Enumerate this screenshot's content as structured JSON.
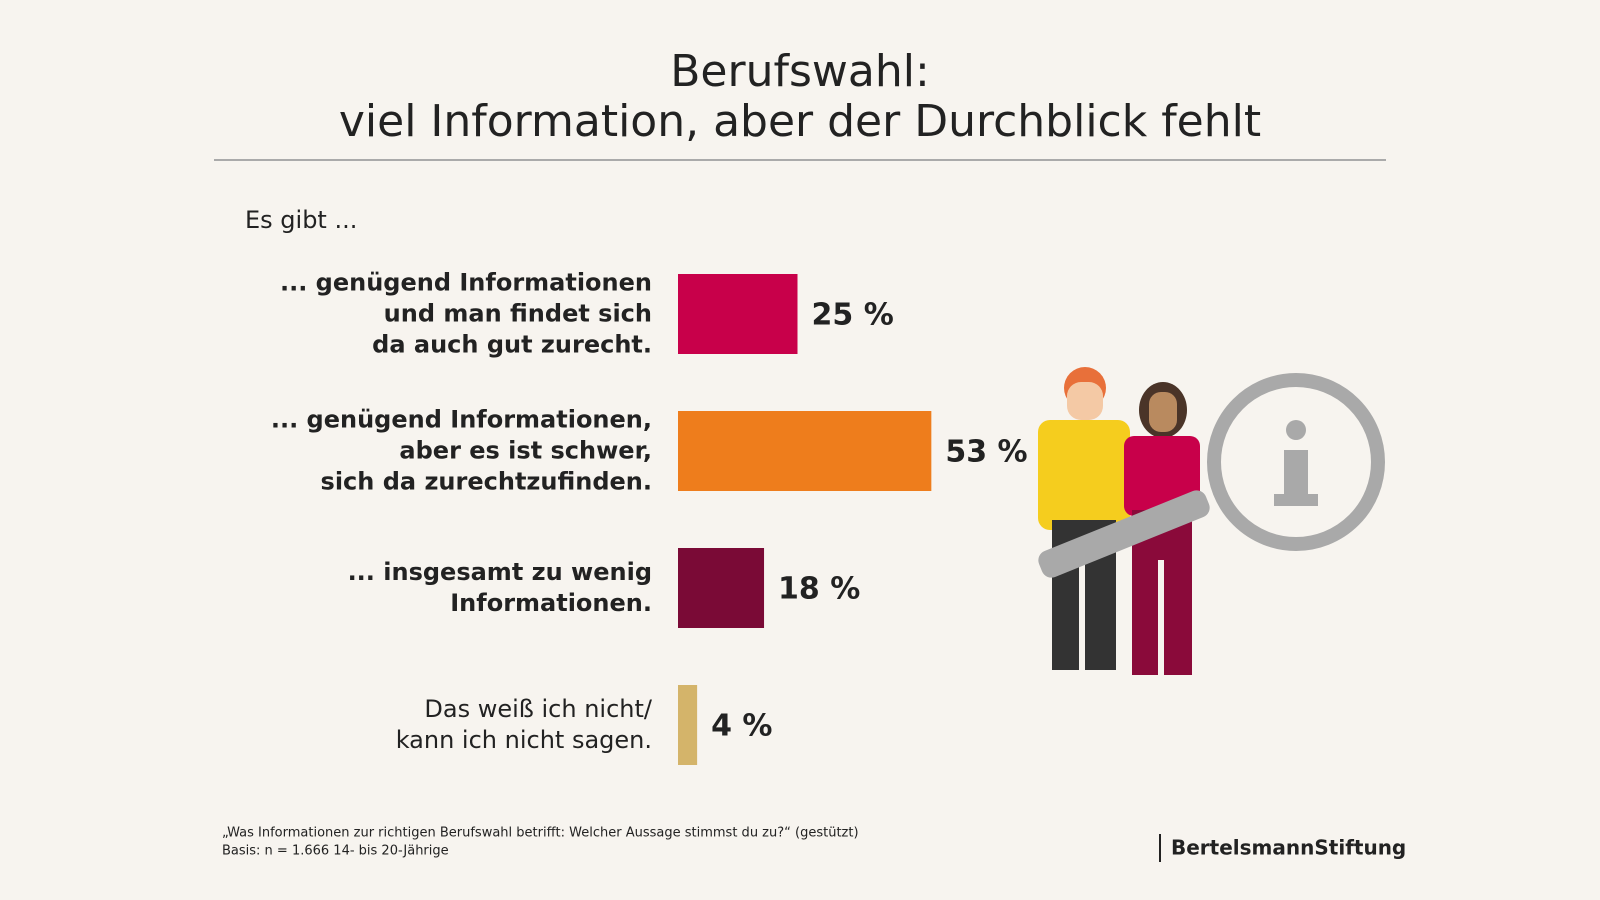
{
  "chart_data": {
    "type": "bar",
    "title": "Berufswahl:",
    "subtitle": "viel Information, aber der Durchblick fehlt",
    "annotation": "Es gibt ...",
    "categories": [
      "... genügend Informationen\nund man findet sich\nda auch gut zurecht.",
      "... genügend Informationen,\naber es ist schwer,\nsich da zurechtzufinden.",
      "... insgesamt zu wenig\nInformationen.",
      "Das weiß ich nicht/\nkann ich nicht sagen."
    ],
    "values": [
      25,
      53,
      18,
      4
    ],
    "value_labels": [
      "25 %",
      "53 %",
      "18 %",
      "4 %"
    ],
    "colors": [
      "#c8004a",
      "#ee7d1c",
      "#7a0a36",
      "#d4b46a"
    ],
    "notes": [
      "„Was Informationen zur richtigen Berufswahl betrifft: Welcher Aussage stimmst du zu?“ (gestützt)",
      "Basis: n = 1.666 14- bis 20-Jährige"
    ],
    "source": "BertelsmannStiftung"
  }
}
